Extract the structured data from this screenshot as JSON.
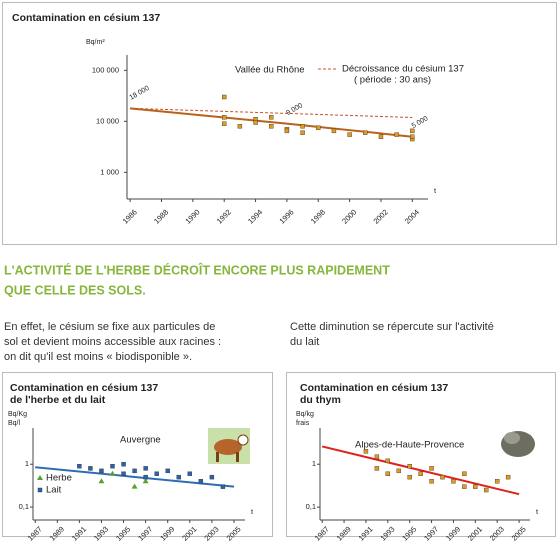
{
  "chart_data": [
    {
      "type": "scatter",
      "title": [
        "Contamination en césium 137"
      ],
      "y_unit": [
        "Bq/m²"
      ],
      "region": "Vallée du Rhône",
      "log_y": true,
      "grid": false,
      "x_label": "t",
      "xlim": [
        1985.8,
        2005
      ],
      "xticks": [
        1986,
        1988,
        1990,
        1992,
        1994,
        1996,
        1998,
        2000,
        2002,
        2004
      ],
      "ylim": [
        300,
        200000
      ],
      "yticks": [
        {
          "value": 1000,
          "label": "1 000"
        },
        {
          "value": 10000,
          "label": "10 000"
        },
        {
          "value": 100000,
          "label": "100 000"
        }
      ],
      "series": [
        {
          "color": "#e39a1c",
          "marker": "square",
          "x": [
            1992,
            1992,
            1992,
            1993,
            1994,
            1994,
            1995,
            1995,
            1996,
            1996,
            1997,
            1997,
            1998,
            1999,
            2000,
            2001,
            2002,
            2003,
            2004,
            2004,
            2004
          ],
          "values": [
            30000,
            12000,
            9000,
            8000,
            11000,
            9500,
            12000,
            8000,
            7000,
            6500,
            8000,
            6000,
            7500,
            6500,
            5500,
            6000,
            5000,
            5500,
            6500,
            4500,
            5000
          ]
        }
      ],
      "lines": [
        {
          "color": "#b8621b",
          "dash": false,
          "x": [
            1986,
            1996,
            2004
          ],
          "values": [
            18000,
            9000,
            5000
          ],
          "value_labels": [
            "18 000",
            "9 000",
            "5 000"
          ]
        },
        {
          "name": "Décroissance du césium 137",
          "note": "( période : 30 ans)",
          "color": "#c9502a",
          "dash": true,
          "x": [
            1986,
            2004
          ],
          "values": [
            18000,
            11900
          ]
        }
      ]
    },
    {
      "type": "scatter",
      "title": [
        "Contamination en césium 137",
        "de l'herbe et du lait"
      ],
      "y_unit": [
        "Bq/Kg",
        "Bq/l"
      ],
      "region": "Auvergne",
      "log_y": true,
      "grid": false,
      "x_label": "t",
      "xlim": [
        1986.8,
        2006
      ],
      "xticks": [
        1987,
        1989,
        1991,
        1993,
        1995,
        1997,
        1999,
        2001,
        2003,
        2005
      ],
      "ylim": [
        0.05,
        7
      ],
      "yticks": [
        {
          "value": 0.1,
          "label": "0,1"
        },
        1
      ],
      "series": [
        {
          "name": "Herbe",
          "color": "#5aa02c",
          "marker": "triangle",
          "x": [
            1993,
            1994,
            1996,
            1997
          ],
          "values": [
            0.4,
            0.6,
            0.3,
            0.4
          ]
        },
        {
          "name": "Lait",
          "color": "#2a62b0",
          "marker": "square",
          "x": [
            1991,
            1992,
            1993,
            1994,
            1995,
            1995,
            1996,
            1997,
            1997,
            1998,
            1999,
            2000,
            2001,
            2002,
            2003,
            2004
          ],
          "values": [
            0.9,
            0.8,
            0.7,
            0.9,
            0.6,
            1.0,
            0.7,
            0.5,
            0.8,
            0.6,
            0.7,
            0.5,
            0.6,
            0.4,
            0.5,
            0.3
          ]
        }
      ],
      "lines": [
        {
          "color": "#2e6db5",
          "dash": false,
          "x": [
            1987,
            2005
          ],
          "values": [
            0.85,
            0.3
          ]
        }
      ]
    },
    {
      "type": "scatter",
      "title": [
        "Contamination en césium 137",
        "du thym"
      ],
      "y_unit": [
        "Bq/kg",
        "frais"
      ],
      "region": "Alpes-de-Haute-Provence",
      "log_y": true,
      "grid": false,
      "x_label": "t",
      "xlim": [
        1986.8,
        2006
      ],
      "xticks": [
        1987,
        1989,
        1991,
        1993,
        1995,
        1997,
        1999,
        2001,
        2003,
        2005
      ],
      "ylim": [
        0.05,
        7
      ],
      "yticks": [
        {
          "value": 0.1,
          "label": "0,1"
        },
        1
      ],
      "series": [
        {
          "color": "#e39a1c",
          "marker": "square",
          "x": [
            1991,
            1992,
            1992,
            1993,
            1993,
            1994,
            1995,
            1995,
            1996,
            1997,
            1997,
            1998,
            1999,
            2000,
            2000,
            2001,
            2002,
            2003,
            2004
          ],
          "values": [
            2,
            1.5,
            0.8,
            1.2,
            0.6,
            0.7,
            0.5,
            0.9,
            0.6,
            0.4,
            0.8,
            0.5,
            0.4,
            0.3,
            0.6,
            0.3,
            0.25,
            0.4,
            0.5
          ]
        }
      ],
      "lines": [
        {
          "color": "#e0201c",
          "dash": false,
          "x": [
            1987,
            2005
          ],
          "values": [
            2.6,
            0.2
          ]
        }
      ]
    }
  ],
  "heading": [
    "L'ACTIVITÉ DE L'HERBE DÉCROÎT ENCORE PLUS RAPIDEMENT",
    "QUE CELLE DES SOLS."
  ],
  "paragraphs": [
    [
      "En effet, le césium se fixe aux particules de",
      "sol et devient moins accessible aux racines :",
      "on dit qu'il est moins « biodisponible »."
    ],
    [
      "Cette diminution se répercute sur l'activité",
      "du lait"
    ]
  ]
}
